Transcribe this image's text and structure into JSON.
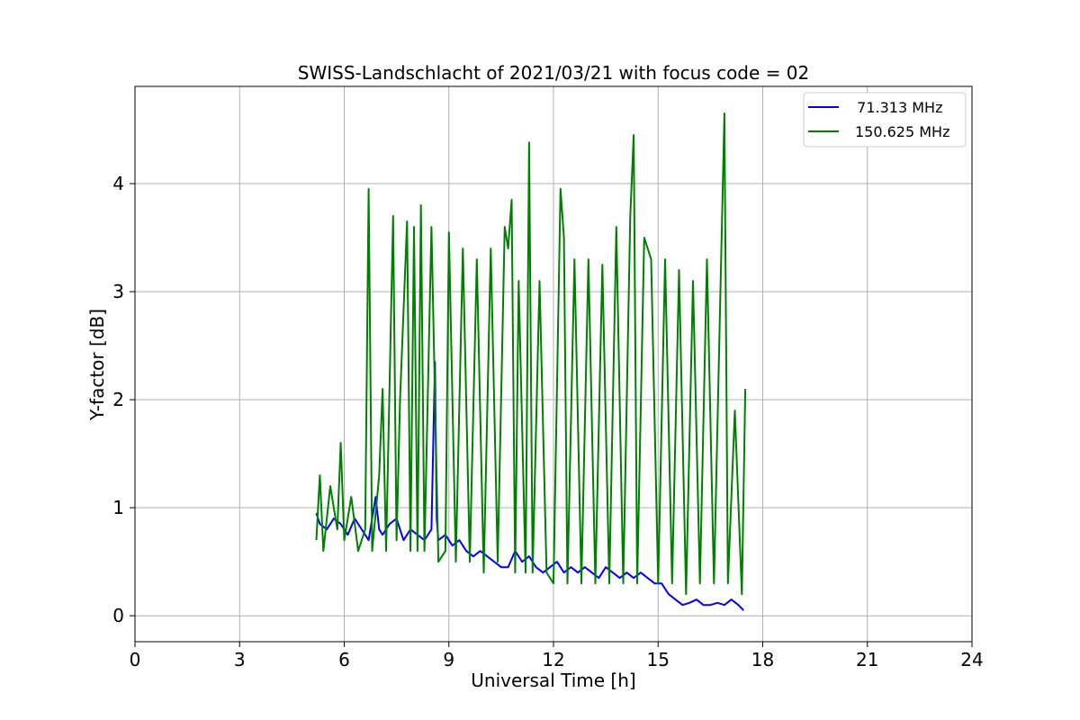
{
  "chart_data": {
    "type": "line",
    "title": "SWISS-Landschlacht of 2021/03/21 with focus code = 02",
    "xlabel": "Universal Time [h]",
    "ylabel": "Y-factor [dB]",
    "xlim": [
      0,
      24
    ],
    "ylim": [
      -0.24,
      4.9
    ],
    "xticks": [
      0,
      3,
      6,
      9,
      12,
      15,
      18,
      21,
      24
    ],
    "xtick_labels": [
      "0",
      "3",
      "6",
      "9",
      "12",
      "15",
      "18",
      "21",
      "24"
    ],
    "yticks": [
      0,
      1,
      2,
      3,
      4
    ],
    "ytick_labels": [
      "0",
      "1",
      "2",
      "3",
      "4"
    ],
    "grid": true,
    "legend_position": "top-right",
    "series": [
      {
        "name": "  71.313 MHz",
        "color": "#0000ff",
        "x": [
          5.2,
          5.3,
          5.5,
          5.7,
          5.9,
          6.1,
          6.3,
          6.5,
          6.7,
          6.9,
          7.0,
          7.1,
          7.3,
          7.5,
          7.7,
          7.9,
          8.1,
          8.3,
          8.5,
          8.6,
          8.65,
          8.7,
          8.9,
          9.1,
          9.3,
          9.5,
          9.7,
          9.9,
          10.1,
          10.3,
          10.5,
          10.7,
          10.9,
          11.1,
          11.3,
          11.5,
          11.7,
          11.9,
          12.1,
          12.3,
          12.5,
          12.7,
          12.9,
          13.1,
          13.3,
          13.5,
          13.7,
          13.9,
          14.1,
          14.3,
          14.5,
          14.7,
          14.9,
          15.1,
          15.3,
          15.5,
          15.7,
          15.9,
          16.1,
          16.3,
          16.5,
          16.7,
          16.9,
          17.1,
          17.3,
          17.45
        ],
        "y": [
          0.95,
          0.85,
          0.8,
          0.9,
          0.85,
          0.75,
          0.9,
          0.8,
          0.7,
          1.1,
          0.8,
          0.75,
          0.85,
          0.9,
          0.7,
          0.8,
          0.75,
          0.7,
          0.8,
          2.35,
          0.9,
          0.7,
          0.75,
          0.65,
          0.7,
          0.6,
          0.55,
          0.6,
          0.55,
          0.5,
          0.45,
          0.45,
          0.6,
          0.5,
          0.55,
          0.45,
          0.4,
          0.45,
          0.5,
          0.4,
          0.45,
          0.4,
          0.45,
          0.4,
          0.35,
          0.45,
          0.4,
          0.35,
          0.4,
          0.35,
          0.4,
          0.35,
          0.3,
          0.3,
          0.2,
          0.15,
          0.1,
          0.12,
          0.15,
          0.1,
          0.1,
          0.12,
          0.1,
          0.15,
          0.1,
          0.05
        ]
      },
      {
        "name": "150.625 MHz",
        "color": "#008000",
        "x": [
          5.2,
          5.3,
          5.4,
          5.6,
          5.8,
          5.9,
          6.0,
          6.2,
          6.4,
          6.6,
          6.7,
          6.8,
          7.0,
          7.1,
          7.2,
          7.4,
          7.5,
          7.6,
          7.8,
          7.9,
          8.0,
          8.1,
          8.2,
          8.3,
          8.5,
          8.7,
          8.9,
          9.0,
          9.2,
          9.4,
          9.6,
          9.8,
          10.0,
          10.2,
          10.4,
          10.6,
          10.7,
          10.8,
          10.9,
          11.0,
          11.2,
          11.3,
          11.4,
          11.6,
          11.8,
          12.0,
          12.2,
          12.3,
          12.4,
          12.6,
          12.8,
          13.0,
          13.2,
          13.4,
          13.6,
          13.8,
          14.0,
          14.2,
          14.3,
          14.4,
          14.6,
          14.8,
          15.0,
          15.2,
          15.4,
          15.6,
          15.8,
          16.0,
          16.2,
          16.4,
          16.6,
          16.8,
          16.9,
          17.0,
          17.2,
          17.4,
          17.5
        ],
        "y": [
          0.7,
          1.3,
          0.6,
          1.2,
          0.8,
          1.6,
          0.7,
          1.1,
          0.6,
          0.8,
          3.95,
          0.6,
          1.3,
          2.1,
          0.6,
          3.7,
          0.7,
          2.0,
          3.65,
          0.6,
          3.6,
          0.6,
          3.8,
          0.6,
          3.6,
          0.5,
          0.6,
          3.55,
          0.5,
          3.4,
          0.5,
          3.3,
          0.4,
          3.4,
          0.5,
          3.6,
          3.4,
          3.85,
          0.4,
          3.1,
          0.4,
          4.38,
          0.4,
          3.1,
          0.4,
          0.3,
          3.95,
          3.5,
          0.3,
          3.3,
          0.3,
          3.3,
          0.3,
          3.25,
          0.3,
          3.6,
          0.3,
          3.7,
          4.45,
          0.3,
          3.5,
          3.3,
          0.3,
          3.3,
          0.3,
          3.2,
          0.2,
          3.1,
          0.3,
          3.3,
          0.3,
          3.2,
          4.65,
          0.3,
          1.9,
          0.2,
          2.1
        ]
      }
    ]
  }
}
